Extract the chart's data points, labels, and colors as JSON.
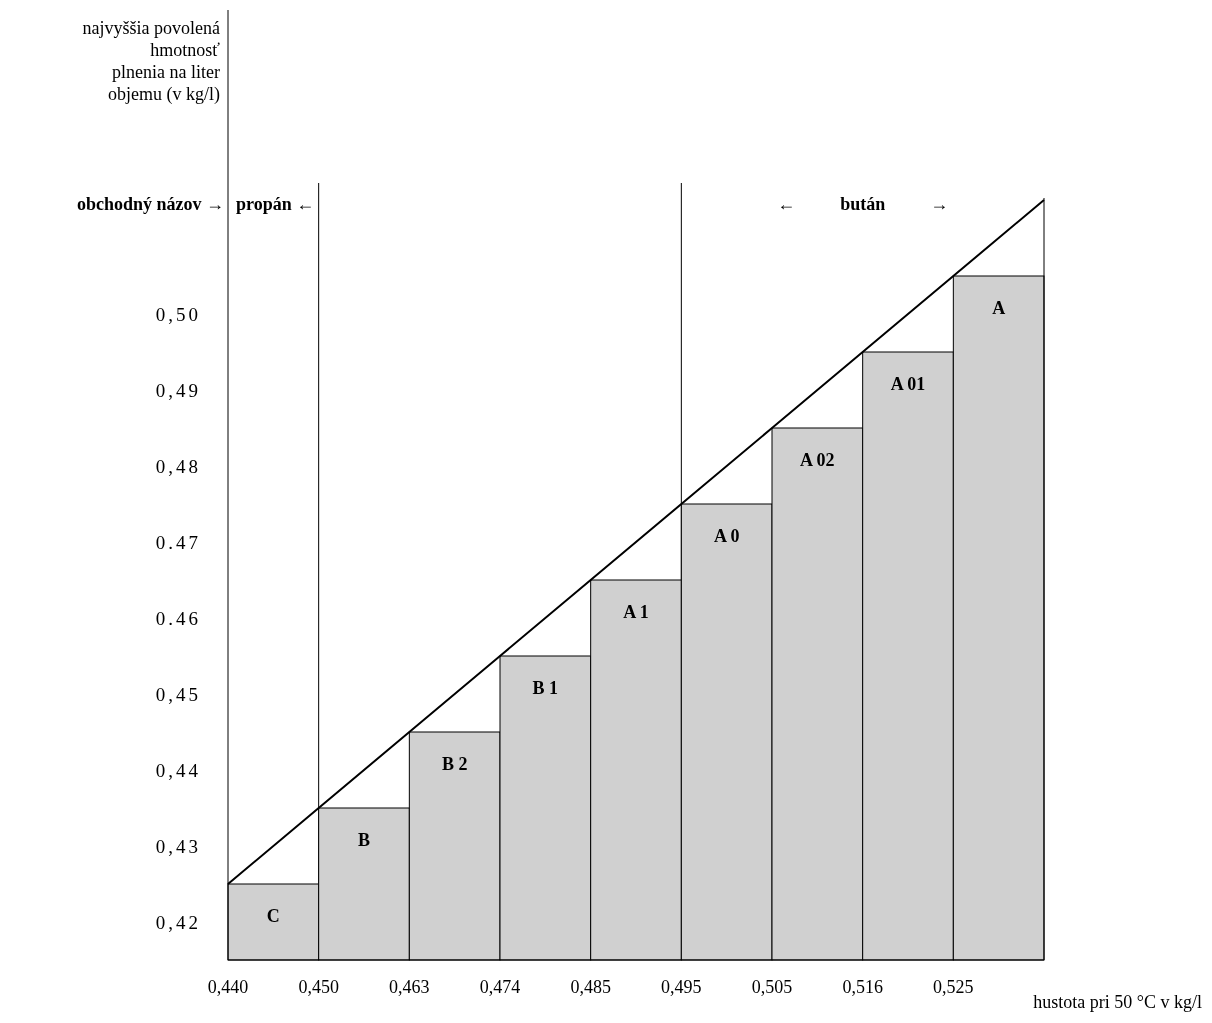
{
  "chart_data": {
    "type": "bar",
    "xlabel": "hustota pri 50 °C v kg/l",
    "ylabel": "najvyššia povolená\nhmotnosť\nplnenia na liter\nobjemu (v kg/l)",
    "categories": [
      "0,440",
      "0,450",
      "0,463",
      "0,474",
      "0,485",
      "0,495",
      "0,505",
      "0,516",
      "0,525",
      null
    ],
    "ylim": [
      0.415,
      0.54
    ],
    "yticks": [
      {
        "value": 0.42,
        "label": "0,42"
      },
      {
        "value": 0.43,
        "label": "0,43"
      },
      {
        "value": 0.44,
        "label": "0,44"
      },
      {
        "value": 0.45,
        "label": "0,45"
      },
      {
        "value": 0.46,
        "label": "0.46"
      },
      {
        "value": 0.47,
        "label": "0.47"
      },
      {
        "value": 0.48,
        "label": "0,48"
      },
      {
        "value": 0.49,
        "label": "0,49"
      },
      {
        "value": 0.5,
        "label": "0,50"
      }
    ],
    "series": [
      {
        "color": "#d0d0d0",
        "values": [
          0.425,
          0.435,
          0.445,
          0.455,
          0.465,
          0.475,
          0.485,
          0.495,
          0.505,
          null
        ],
        "value_labels": [
          "C",
          "B",
          "B 2",
          "B 1",
          "A 1",
          "A 0",
          "A 02",
          "A 01",
          "A",
          null
        ]
      },
      {
        "type": "line",
        "color": "#000000",
        "values": [
          0.425,
          0.435,
          0.445,
          0.455,
          0.465,
          0.475,
          0.485,
          0.495,
          0.505,
          0.515
        ]
      }
    ],
    "ref_lines": [
      {
        "axis": "x",
        "value": "0,450"
      },
      {
        "axis": "x",
        "value": "0,495"
      }
    ],
    "annotations": [
      "obchodný názov →",
      "propán ←",
      "←          bután          →"
    ]
  }
}
